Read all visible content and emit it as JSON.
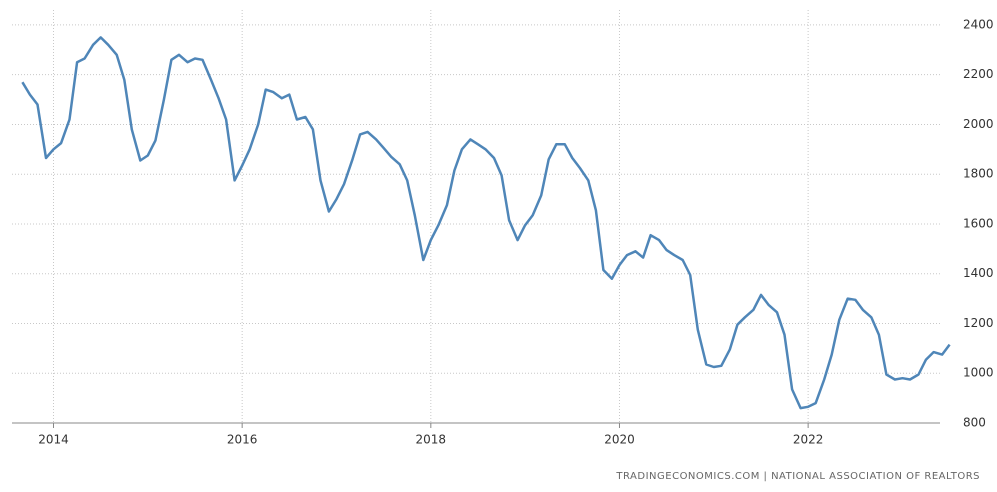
{
  "chart_data": {
    "type": "line",
    "x": [
      2013.67,
      2013.75,
      2013.83,
      2013.92,
      2014.0,
      2014.08,
      2014.17,
      2014.25,
      2014.33,
      2014.42,
      2014.5,
      2014.58,
      2014.67,
      2014.75,
      2014.83,
      2014.92,
      2015.0,
      2015.08,
      2015.17,
      2015.25,
      2015.33,
      2015.42,
      2015.5,
      2015.58,
      2015.67,
      2015.75,
      2015.83,
      2015.92,
      2016.0,
      2016.08,
      2016.17,
      2016.25,
      2016.33,
      2016.42,
      2016.5,
      2016.58,
      2016.67,
      2016.75,
      2016.83,
      2016.92,
      2017.0,
      2017.08,
      2017.17,
      2017.25,
      2017.33,
      2017.42,
      2017.5,
      2017.58,
      2017.67,
      2017.75,
      2017.83,
      2017.92,
      2018.0,
      2018.08,
      2018.17,
      2018.25,
      2018.33,
      2018.42,
      2018.5,
      2018.58,
      2018.67,
      2018.75,
      2018.83,
      2018.92,
      2019.0,
      2019.08,
      2019.17,
      2019.25,
      2019.33,
      2019.42,
      2019.5,
      2019.58,
      2019.67,
      2019.75,
      2019.83,
      2019.92,
      2020.0,
      2020.08,
      2020.17,
      2020.25,
      2020.33,
      2020.42,
      2020.5,
      2020.58,
      2020.67,
      2020.75,
      2020.83,
      2020.92,
      2021.0,
      2021.08,
      2021.17,
      2021.25,
      2021.33,
      2021.42,
      2021.5,
      2021.58,
      2021.67,
      2021.75,
      2021.83,
      2021.92,
      2022.0,
      2022.08,
      2022.17,
      2022.25,
      2022.33,
      2022.42,
      2022.5,
      2022.58,
      2022.67,
      2022.75,
      2022.83,
      2022.92,
      2023.0,
      2023.08,
      2023.17,
      2023.25,
      2023.33,
      2023.42,
      2023.5
    ],
    "series": [
      {
        "color": "#4f86b8",
        "values": [
          2170,
          2120,
          2080,
          1865,
          1900,
          1925,
          2020,
          2250,
          2265,
          2320,
          2350,
          2320,
          2280,
          2180,
          1980,
          1855,
          1875,
          1935,
          2100,
          2260,
          2280,
          2250,
          2265,
          2260,
          2180,
          2105,
          2020,
          1775,
          1835,
          1900,
          2000,
          2140,
          2130,
          2105,
          2120,
          2020,
          2030,
          1980,
          1775,
          1650,
          1700,
          1760,
          1860,
          1960,
          1970,
          1940,
          1905,
          1870,
          1840,
          1775,
          1635,
          1455,
          1535,
          1595,
          1675,
          1815,
          1900,
          1940,
          1920,
          1900,
          1865,
          1795,
          1615,
          1535,
          1595,
          1635,
          1715,
          1860,
          1920,
          1920,
          1865,
          1825,
          1775,
          1655,
          1415,
          1380,
          1435,
          1475,
          1490,
          1465,
          1555,
          1535,
          1495,
          1475,
          1455,
          1395,
          1175,
          1035,
          1025,
          1030,
          1095,
          1195,
          1225,
          1255,
          1315,
          1275,
          1245,
          1155,
          935,
          860,
          865,
          880,
          975,
          1075,
          1215,
          1300,
          1295,
          1255,
          1225,
          1155,
          995,
          975,
          980,
          975,
          995,
          1055,
          1085,
          1075,
          1115
        ]
      }
    ],
    "xlim": [
      2013.56,
      2023.61
    ],
    "xticks": [
      2014,
      2016,
      2018,
      2020,
      2022
    ],
    "ylim": [
      800,
      2460
    ],
    "yticks": [
      800,
      1000,
      1200,
      1400,
      1600,
      1800,
      2000,
      2200,
      2400
    ],
    "grid": true,
    "source": "TRADINGECONOMICS.COM  |  NATIONAL ASSOCIATION OF REALTORS"
  }
}
